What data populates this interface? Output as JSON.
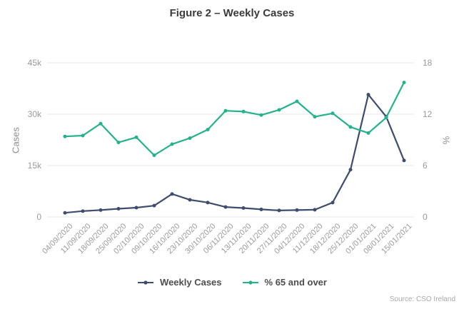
{
  "source": "Source: CSO Ireland",
  "colors": {
    "weekly_cases": "#3e4c6e",
    "pct_65_and_over": "#23b28c",
    "gridline": "#e7e7e7",
    "tick_text": "#9b9b9b"
  },
  "chart_data": {
    "type": "line",
    "title": "Figure 2 – Weekly Cases",
    "x_labels": [
      "04/09/2020",
      "11/09/2020",
      "18/09/2020",
      "25/09/2020",
      "02/10/2020",
      "09/10/2020",
      "16/10/2020",
      "23/10/2020",
      "30/10/2020",
      "06/11/2020",
      "13/11/2020",
      "20/11/2020",
      "27/11/2020",
      "04/12/2020",
      "11/12/2020",
      "18/12/2020",
      "25/12/2020",
      "01/01/2021",
      "08/01/2021",
      "15/01/2021"
    ],
    "series": [
      {
        "name": "Weekly Cases",
        "axis": "left",
        "color": "#3e4c6e",
        "values": [
          1200,
          1700,
          2000,
          2400,
          2700,
          3300,
          6700,
          5000,
          4200,
          2900,
          2600,
          2200,
          1900,
          2000,
          2100,
          4200,
          13800,
          35700,
          29300,
          16500
        ]
      },
      {
        "name": "% 65 and over",
        "axis": "right",
        "color": "#23b28c",
        "values": [
          9.4,
          9.5,
          10.9,
          8.7,
          9.3,
          7.2,
          8.5,
          9.2,
          10.2,
          12.4,
          12.3,
          11.9,
          12.5,
          13.5,
          11.7,
          12.1,
          10.5,
          9.8,
          11.6,
          15.7
        ]
      }
    ],
    "left_axis": {
      "label": "Cases",
      "min": 0,
      "max": 45000,
      "ticks": [
        "0",
        "15k",
        "30k",
        "45k"
      ]
    },
    "right_axis": {
      "label": "%",
      "min": 0,
      "max": 18,
      "ticks": [
        "0",
        "6",
        "12",
        "18"
      ]
    },
    "grid": "horizontal",
    "legend_position": "bottom"
  }
}
